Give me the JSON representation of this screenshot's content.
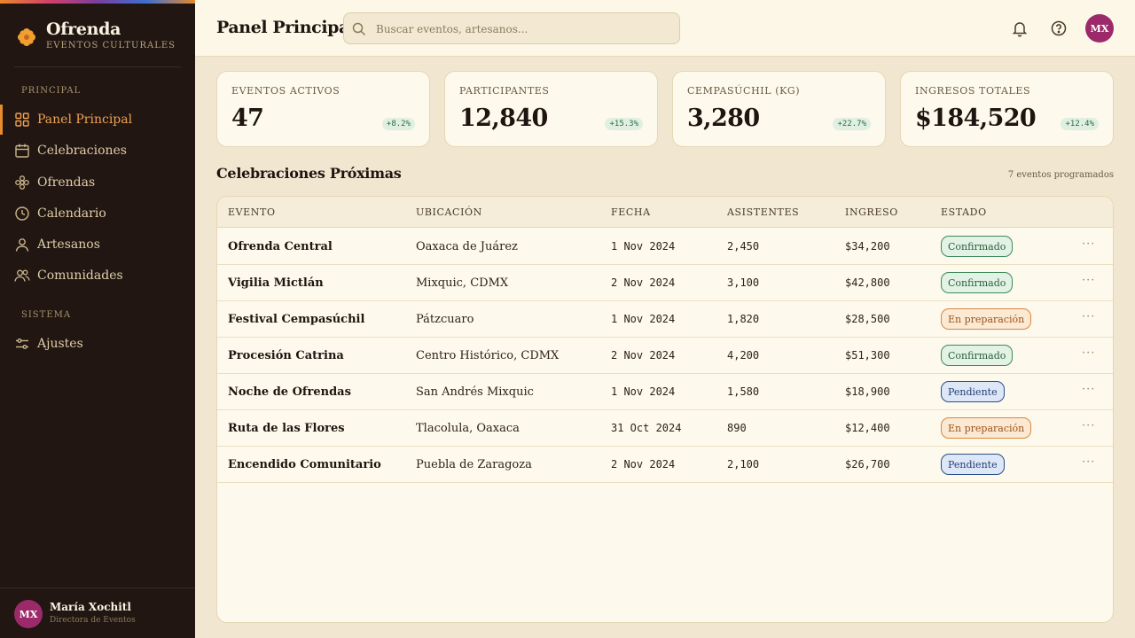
{
  "sidebar": {
    "brand_title": "Ofrenda",
    "brand_subtitle": "EVENTOS CULTURALES",
    "section_principal": "PRINCIPAL",
    "section_sistema": "SISTEMA",
    "items": [
      {
        "label": "Panel Principal",
        "icon": "grid-icon",
        "active": true
      },
      {
        "label": "Celebraciones",
        "icon": "calendar-icon"
      },
      {
        "label": "Ofrendas",
        "icon": "flower-icon"
      },
      {
        "label": "Calendario",
        "icon": "clock-icon"
      },
      {
        "label": "Artesanos",
        "icon": "person-icon"
      },
      {
        "label": "Comunidades",
        "icon": "people-icon"
      }
    ],
    "system_items": [
      {
        "label": "Ajustes",
        "icon": "sliders-icon"
      }
    ],
    "user": {
      "initials": "MX",
      "name": "María Xochitl",
      "role": "Directora de Eventos"
    }
  },
  "header": {
    "title": "Panel Principal",
    "search_placeholder": "Buscar eventos, artesanos...",
    "avatar_initials": "MX"
  },
  "stats": [
    {
      "label": "EVENTOS ACTIVOS",
      "value": "47",
      "delta": "+8.2%"
    },
    {
      "label": "PARTICIPANTES",
      "value": "12,840",
      "delta": "+15.3%"
    },
    {
      "label": "CEMPASÚCHIL (KG)",
      "value": "3,280",
      "delta": "+22.7%"
    },
    {
      "label": "INGRESOS TOTALES",
      "value": "$184,520",
      "delta": "+12.4%"
    }
  ],
  "section": {
    "title": "Celebraciones Próximas",
    "count": "7 eventos programados"
  },
  "table": {
    "headers": [
      "EVENTO",
      "UBICACIÓN",
      "FECHA",
      "ASISTENTES",
      "INGRESO",
      "ESTADO"
    ],
    "rows": [
      {
        "event": "Ofrenda Central",
        "location": "Oaxaca de Juárez",
        "date": "1 Nov 2024",
        "attendees": "2,450",
        "income": "$34,200",
        "status": "Confirmado",
        "status_type": "ok"
      },
      {
        "event": "Vigilia Mictlán",
        "location": "Mixquic, CDMX",
        "date": "2 Nov 2024",
        "attendees": "3,100",
        "income": "$42,800",
        "status": "Confirmado",
        "status_type": "ok"
      },
      {
        "event": "Festival Cempasúchil",
        "location": "Pátzcuaro",
        "date": "1 Nov 2024",
        "attendees": "1,820",
        "income": "$28,500",
        "status": "En preparación",
        "status_type": "prep"
      },
      {
        "event": "Procesión Catrina",
        "location": "Centro Histórico, CDMX",
        "date": "2 Nov 2024",
        "attendees": "4,200",
        "income": "$51,300",
        "status": "Confirmado",
        "status_type": "ok"
      },
      {
        "event": "Noche de Ofrendas",
        "location": "San Andrés Mixquic",
        "date": "1 Nov 2024",
        "attendees": "1,580",
        "income": "$18,900",
        "status": "Pendiente",
        "status_type": "pend"
      },
      {
        "event": "Ruta de las Flores",
        "location": "Tlacolula, Oaxaca",
        "date": "31 Oct 2024",
        "attendees": "890",
        "income": "$12,400",
        "status": "En preparación",
        "status_type": "prep"
      },
      {
        "event": "Encendido Comunitario",
        "location": "Puebla de Zaragoza",
        "date": "2 Nov 2024",
        "attendees": "2,100",
        "income": "$26,700",
        "status": "Pendiente",
        "status_type": "pend"
      }
    ],
    "row_menu_label": "···"
  },
  "colors": {
    "accent": "#e88d2a",
    "sidebar_bg": "#211612",
    "avatar": "#9c2a6a",
    "status_confirmed": "#3e8a5a",
    "status_prep": "#d8873e",
    "status_pending": "#2a4e8a"
  }
}
